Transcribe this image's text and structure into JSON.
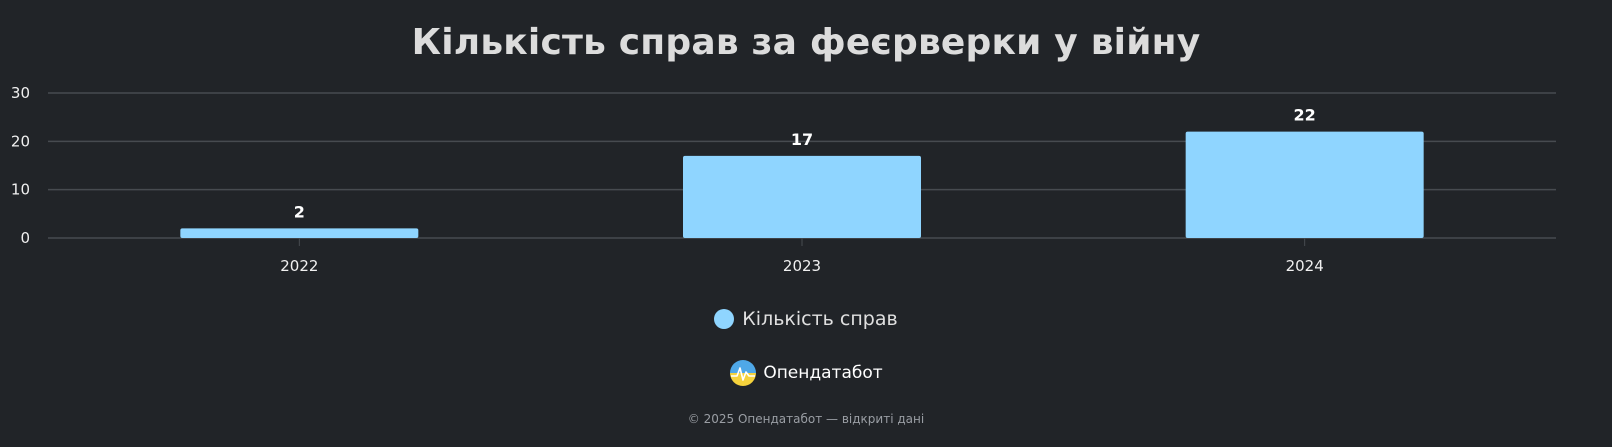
{
  "chart_data": {
    "type": "bar",
    "title": "Кількість справ за феєрверки у війну",
    "categories": [
      "2022",
      "2023",
      "2024"
    ],
    "series": [
      {
        "name": "Кількість справ",
        "values": [
          2,
          17,
          22
        ],
        "color": "#8fd5ff"
      }
    ],
    "ylim": [
      0,
      30
    ],
    "yticks": [
      0,
      10,
      20,
      30
    ],
    "grid": true,
    "data_labels": true,
    "legend_position": "bottom-center"
  },
  "branding": {
    "name": "Опендатабот",
    "logo_icon": "opendatabot-logo-icon"
  },
  "footer": {
    "copyright": "© 2025 Опендатабот — відкриті дані"
  },
  "colors": {
    "background": "#212428",
    "bar": "#8fd5ff",
    "grid": "#474b50"
  }
}
